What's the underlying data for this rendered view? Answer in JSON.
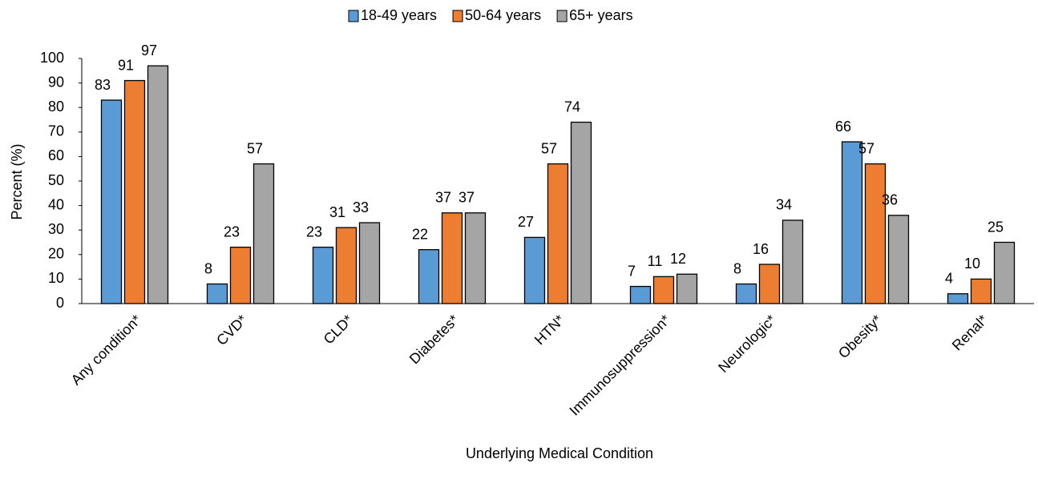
{
  "chart_data": {
    "type": "bar",
    "categories": [
      "Any condition*",
      "CVD*",
      "CLD*",
      "Diabetes*",
      "HTN*",
      "Immunosuppression*",
      "Neurologic*",
      "Obesity*",
      "Renal*"
    ],
    "series": [
      {
        "name": "18-49 years",
        "color": "#5b9bd5",
        "values": [
          83,
          8,
          23,
          22,
          27,
          7,
          8,
          66,
          4
        ]
      },
      {
        "name": "50-64 years",
        "color": "#ed7d31",
        "values": [
          91,
          23,
          31,
          37,
          57,
          11,
          16,
          57,
          10
        ]
      },
      {
        "name": "65+ years",
        "color": "#a5a5a5",
        "values": [
          97,
          57,
          33,
          37,
          74,
          12,
          34,
          36,
          25
        ]
      }
    ],
    "ylim": [
      0,
      100
    ],
    "yticks": [
      0,
      10,
      20,
      30,
      40,
      50,
      60,
      70,
      80,
      90,
      100
    ],
    "y_label": "Percent (%)",
    "x_label": "Underlying Medical Condition"
  }
}
